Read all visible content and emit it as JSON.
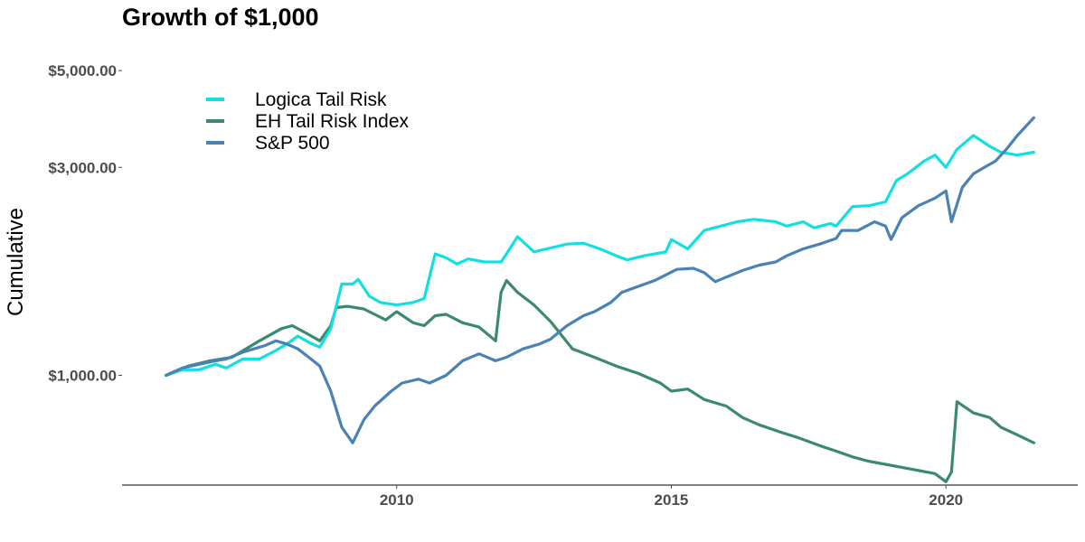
{
  "chart_data": {
    "type": "line",
    "title": "Growth of $1,000",
    "xlabel": "",
    "ylabel": "Cumulative",
    "y_scale": "log",
    "xlim": [
      2005.0,
      2022.4
    ],
    "ylim": [
      560,
      6000
    ],
    "x_ticks": [
      2010,
      2015,
      2020
    ],
    "x_tick_labels": [
      "2010",
      "2015",
      "2020"
    ],
    "y_ticks": [
      1000,
      3000,
      5000
    ],
    "y_tick_labels": [
      "$1,000.00",
      "$3,000.00",
      "$5,000.00"
    ],
    "grid": false,
    "legend_position": "top-left",
    "series": [
      {
        "name": "Logica Tail Risk",
        "color": "#12e0e0",
        "points": [
          [
            2005.8,
            1000
          ],
          [
            2006.1,
            1030
          ],
          [
            2006.4,
            1030
          ],
          [
            2006.7,
            1060
          ],
          [
            2006.9,
            1040
          ],
          [
            2007.2,
            1090
          ],
          [
            2007.5,
            1090
          ],
          [
            2007.8,
            1140
          ],
          [
            2008.0,
            1180
          ],
          [
            2008.2,
            1230
          ],
          [
            2008.4,
            1190
          ],
          [
            2008.6,
            1160
          ],
          [
            2008.8,
            1280
          ],
          [
            2009.0,
            1620
          ],
          [
            2009.2,
            1620
          ],
          [
            2009.3,
            1660
          ],
          [
            2009.5,
            1520
          ],
          [
            2009.7,
            1470
          ],
          [
            2010.0,
            1450
          ],
          [
            2010.3,
            1470
          ],
          [
            2010.5,
            1500
          ],
          [
            2010.7,
            1900
          ],
          [
            2010.9,
            1860
          ],
          [
            2011.1,
            1800
          ],
          [
            2011.3,
            1850
          ],
          [
            2011.6,
            1820
          ],
          [
            2011.9,
            1820
          ],
          [
            2012.0,
            1900
          ],
          [
            2012.2,
            2080
          ],
          [
            2012.5,
            1920
          ],
          [
            2012.8,
            1960
          ],
          [
            2013.1,
            2000
          ],
          [
            2013.4,
            2010
          ],
          [
            2013.7,
            1950
          ],
          [
            2014.0,
            1880
          ],
          [
            2014.2,
            1840
          ],
          [
            2014.5,
            1880
          ],
          [
            2014.9,
            1920
          ],
          [
            2015.0,
            2050
          ],
          [
            2015.3,
            1950
          ],
          [
            2015.6,
            2150
          ],
          [
            2015.9,
            2200
          ],
          [
            2016.2,
            2250
          ],
          [
            2016.5,
            2280
          ],
          [
            2016.9,
            2250
          ],
          [
            2017.1,
            2200
          ],
          [
            2017.4,
            2250
          ],
          [
            2017.6,
            2180
          ],
          [
            2017.9,
            2230
          ],
          [
            2018.0,
            2200
          ],
          [
            2018.3,
            2440
          ],
          [
            2018.6,
            2450
          ],
          [
            2018.9,
            2500
          ],
          [
            2019.1,
            2800
          ],
          [
            2019.3,
            2900
          ],
          [
            2019.6,
            3100
          ],
          [
            2019.8,
            3200
          ],
          [
            2020.0,
            3000
          ],
          [
            2020.2,
            3300
          ],
          [
            2020.5,
            3550
          ],
          [
            2020.8,
            3350
          ],
          [
            2021.0,
            3250
          ],
          [
            2021.3,
            3200
          ],
          [
            2021.6,
            3250
          ]
        ]
      },
      {
        "name": "EH Tail Risk Index",
        "color": "#3c8a6e",
        "points": [
          [
            2005.8,
            1000
          ],
          [
            2006.2,
            1050
          ],
          [
            2006.6,
            1080
          ],
          [
            2007.0,
            1100
          ],
          [
            2007.5,
            1200
          ],
          [
            2007.9,
            1280
          ],
          [
            2008.1,
            1300
          ],
          [
            2008.4,
            1240
          ],
          [
            2008.6,
            1200
          ],
          [
            2008.8,
            1300
          ],
          [
            2008.9,
            1430
          ],
          [
            2009.1,
            1440
          ],
          [
            2009.4,
            1420
          ],
          [
            2009.6,
            1380
          ],
          [
            2009.8,
            1340
          ],
          [
            2010.0,
            1400
          ],
          [
            2010.3,
            1320
          ],
          [
            2010.5,
            1300
          ],
          [
            2010.7,
            1370
          ],
          [
            2010.9,
            1380
          ],
          [
            2011.2,
            1320
          ],
          [
            2011.5,
            1290
          ],
          [
            2011.8,
            1200
          ],
          [
            2011.9,
            1550
          ],
          [
            2012.0,
            1650
          ],
          [
            2012.2,
            1550
          ],
          [
            2012.5,
            1450
          ],
          [
            2012.8,
            1330
          ],
          [
            2013.2,
            1150
          ],
          [
            2013.6,
            1100
          ],
          [
            2014.0,
            1050
          ],
          [
            2014.4,
            1010
          ],
          [
            2014.8,
            960
          ],
          [
            2015.0,
            920
          ],
          [
            2015.3,
            930
          ],
          [
            2015.6,
            880
          ],
          [
            2016.0,
            850
          ],
          [
            2016.3,
            800
          ],
          [
            2016.6,
            770
          ],
          [
            2017.0,
            740
          ],
          [
            2017.3,
            720
          ],
          [
            2017.7,
            690
          ],
          [
            2018.0,
            670
          ],
          [
            2018.3,
            650
          ],
          [
            2018.6,
            635
          ],
          [
            2018.9,
            625
          ],
          [
            2019.2,
            615
          ],
          [
            2019.5,
            605
          ],
          [
            2019.8,
            595
          ],
          [
            2020.0,
            570
          ],
          [
            2020.1,
            600
          ],
          [
            2020.2,
            870
          ],
          [
            2020.5,
            820
          ],
          [
            2020.8,
            800
          ],
          [
            2021.0,
            760
          ],
          [
            2021.3,
            730
          ],
          [
            2021.6,
            700
          ]
        ]
      },
      {
        "name": "S&P 500",
        "color": "#4a82b4",
        "points": [
          [
            2005.8,
            1000
          ],
          [
            2006.1,
            1040
          ],
          [
            2006.4,
            1060
          ],
          [
            2006.7,
            1080
          ],
          [
            2006.9,
            1090
          ],
          [
            2007.2,
            1130
          ],
          [
            2007.4,
            1150
          ],
          [
            2007.6,
            1170
          ],
          [
            2007.8,
            1200
          ],
          [
            2008.0,
            1180
          ],
          [
            2008.2,
            1150
          ],
          [
            2008.4,
            1100
          ],
          [
            2008.6,
            1050
          ],
          [
            2008.8,
            920
          ],
          [
            2009.0,
            760
          ],
          [
            2009.2,
            700
          ],
          [
            2009.4,
            790
          ],
          [
            2009.6,
            850
          ],
          [
            2009.9,
            920
          ],
          [
            2010.1,
            960
          ],
          [
            2010.4,
            980
          ],
          [
            2010.6,
            960
          ],
          [
            2010.9,
            1000
          ],
          [
            2011.2,
            1080
          ],
          [
            2011.5,
            1120
          ],
          [
            2011.8,
            1080
          ],
          [
            2012.0,
            1100
          ],
          [
            2012.3,
            1150
          ],
          [
            2012.6,
            1180
          ],
          [
            2012.8,
            1210
          ],
          [
            2013.1,
            1300
          ],
          [
            2013.4,
            1370
          ],
          [
            2013.6,
            1400
          ],
          [
            2013.9,
            1470
          ],
          [
            2014.1,
            1550
          ],
          [
            2014.4,
            1600
          ],
          [
            2014.7,
            1650
          ],
          [
            2014.9,
            1700
          ],
          [
            2015.1,
            1750
          ],
          [
            2015.4,
            1760
          ],
          [
            2015.6,
            1720
          ],
          [
            2015.8,
            1640
          ],
          [
            2016.0,
            1680
          ],
          [
            2016.3,
            1740
          ],
          [
            2016.6,
            1790
          ],
          [
            2016.9,
            1820
          ],
          [
            2017.1,
            1880
          ],
          [
            2017.4,
            1950
          ],
          [
            2017.7,
            2000
          ],
          [
            2018.0,
            2060
          ],
          [
            2018.1,
            2150
          ],
          [
            2018.4,
            2150
          ],
          [
            2018.7,
            2250
          ],
          [
            2018.9,
            2200
          ],
          [
            2019.0,
            2050
          ],
          [
            2019.2,
            2300
          ],
          [
            2019.5,
            2450
          ],
          [
            2019.8,
            2550
          ],
          [
            2020.0,
            2650
          ],
          [
            2020.1,
            2250
          ],
          [
            2020.3,
            2700
          ],
          [
            2020.5,
            2900
          ],
          [
            2020.7,
            3000
          ],
          [
            2020.9,
            3100
          ],
          [
            2021.1,
            3300
          ],
          [
            2021.3,
            3550
          ],
          [
            2021.6,
            3900
          ]
        ]
      }
    ]
  }
}
